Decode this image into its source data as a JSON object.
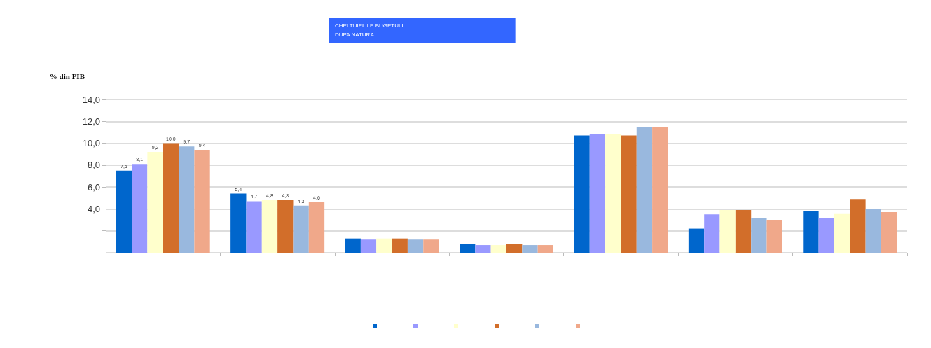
{
  "chart_data": {
    "type": "bar",
    "title": "CHELTUIELILE BUGETULI\nDUPA NATURA",
    "ylabel": "% din PIB",
    "categories": [
      null,
      null,
      null,
      null,
      null,
      null,
      null
    ],
    "series": [
      {
        "color": "#0066cc",
        "values": [
          7.5,
          5.4,
          1.3,
          0.8,
          10.7,
          2.2,
          3.8
        ],
        "value_labels": [
          "7,5",
          "5,4",
          null,
          null,
          null,
          null,
          null
        ]
      },
      {
        "color": "#9999ff",
        "values": [
          8.1,
          4.7,
          1.2,
          0.7,
          10.8,
          3.5,
          3.2
        ],
        "value_labels": [
          "8,1",
          "4,7",
          null,
          null,
          null,
          null,
          null
        ]
      },
      {
        "color": "#ffffcc",
        "values": [
          9.2,
          4.8,
          1.3,
          0.7,
          10.8,
          3.9,
          3.6
        ],
        "value_labels": [
          "9,2",
          "4,8",
          null,
          null,
          null,
          null,
          null
        ]
      },
      {
        "color": "#d26e2a",
        "values": [
          10.0,
          4.8,
          1.3,
          0.8,
          10.7,
          3.9,
          4.9
        ],
        "value_labels": [
          "10,0",
          "4,8",
          null,
          null,
          null,
          null,
          null
        ]
      },
      {
        "color": "#99b8de",
        "values": [
          9.7,
          4.3,
          1.2,
          0.7,
          11.5,
          3.2,
          4.0
        ],
        "value_labels": [
          "9,7",
          "4,3",
          null,
          null,
          null,
          null,
          null
        ]
      },
      {
        "color": "#f0a88a",
        "values": [
          9.4,
          4.6,
          1.2,
          0.7,
          11.5,
          3.0,
          3.7
        ],
        "value_labels": [
          "9,4",
          "4,6",
          null,
          null,
          null,
          null,
          null
        ]
      }
    ],
    "ylim": [
      0,
      14
    ],
    "yticks": [
      {
        "value": 0,
        "label": null
      },
      {
        "value": 2,
        "label": null
      },
      {
        "value": 4,
        "label": "4,0"
      },
      {
        "value": 6,
        "label": "6,0"
      },
      {
        "value": 8,
        "label": "8,0"
      },
      {
        "value": 10,
        "label": "10,0"
      },
      {
        "value": 12,
        "label": "12,0"
      },
      {
        "value": 14,
        "label": "14,0"
      }
    ],
    "grid": "y",
    "tick_labels": "y"
  }
}
